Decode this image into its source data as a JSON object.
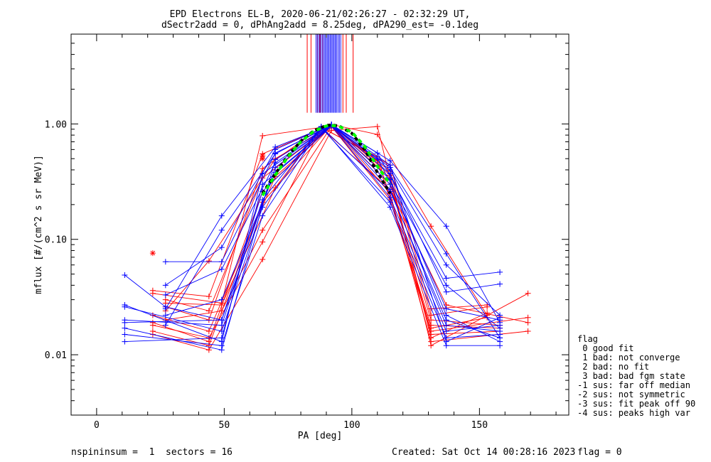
{
  "chart_data": {
    "type": "scatter",
    "title": [
      "EPD Electrons EL-B, 2020-06-21/02:26:27 - 02:32:29 UT,",
      "dSectr2add = 0, dPhAng2add = 8.25deg, dPA290_est=  -0.1deg"
    ],
    "xlabel": "PA [deg]",
    "ylabel": "mflux [#/(cm^2 s sr MeV)]",
    "xlim": [
      -10,
      185
    ],
    "ylim": [
      0.003,
      6
    ],
    "y_scale": "log",
    "x_ticks": [
      0,
      50,
      100,
      150
    ],
    "x_tick_labels": [
      "0",
      "50",
      "100",
      "150"
    ],
    "y_ticks": [
      0.01,
      0.1,
      1.0
    ],
    "y_tick_labels": [
      "0.01",
      "0.10",
      "1.00"
    ],
    "pa_bins": [
      11,
      22,
      27,
      44,
      49,
      65,
      70,
      88,
      92,
      110,
      115,
      131,
      137,
      153,
      158,
      169
    ],
    "series": [
      {
        "color": "#ff0000",
        "pa": [
          22,
          44,
          65,
          92,
          115,
          131,
          153
        ],
        "y": [
          0.019,
          0.013,
          0.26,
          0.98,
          0.36,
          0.014,
          0.023
        ]
      },
      {
        "color": "#ff0000",
        "pa": [
          22,
          44,
          65,
          92,
          115,
          131,
          169
        ],
        "y": [
          0.016,
          0.012,
          0.21,
          0.97,
          0.25,
          0.013,
          0.016
        ]
      },
      {
        "color": "#ff0000",
        "pa": [
          27,
          44,
          65,
          92,
          110,
          131,
          153
        ],
        "y": [
          0.03,
          0.024,
          0.34,
          0.96,
          0.48,
          0.017,
          0.021
        ]
      },
      {
        "color": "#ff0000",
        "pa": [
          22,
          44,
          70,
          92,
          115,
          131,
          169
        ],
        "y": [
          0.022,
          0.016,
          0.35,
          0.95,
          0.22,
          0.016,
          0.021
        ]
      },
      {
        "color": "#ff0000",
        "pa": [
          27,
          44,
          65,
          88,
          110,
          131,
          158
        ],
        "y": [
          0.026,
          0.02,
          0.41,
          0.93,
          0.52,
          0.018,
          0.017
        ]
      },
      {
        "color": "#ff0000",
        "pa": [
          22,
          49,
          65,
          92,
          115,
          131,
          153
        ],
        "y": [
          0.034,
          0.028,
          0.79,
          0.96,
          0.39,
          0.022,
          0.026
        ]
      },
      {
        "color": "#ff0000",
        "pa": [
          27,
          49,
          65,
          92,
          115,
          131,
          158
        ],
        "y": [
          0.02,
          0.024,
          0.12,
          0.95,
          0.3,
          0.02,
          0.018
        ]
      },
      {
        "color": "#ff0000",
        "pa": [
          22,
          44,
          65,
          88,
          115,
          137,
          169
        ],
        "y": [
          0.018,
          0.014,
          0.095,
          0.92,
          0.27,
          0.027,
          0.019
        ]
      },
      {
        "color": "#ff0000",
        "pa": [
          22,
          44,
          65,
          92,
          110,
          131,
          153
        ],
        "y": [
          0.036,
          0.032,
          0.55,
          0.99,
          0.81,
          0.13,
          0.022
        ]
      },
      {
        "color": "#ff0000",
        "pa": [
          27,
          44,
          70,
          92,
          115,
          131,
          158
        ],
        "y": [
          0.024,
          0.065,
          0.5,
          0.96,
          0.34,
          0.015,
          0.016
        ]
      },
      {
        "color": "#ff0000",
        "pa": [
          22,
          44,
          65,
          92,
          110,
          131,
          169
        ],
        "y": [
          0.015,
          0.011,
          0.067,
          0.88,
          0.95,
          0.012,
          0.034
        ]
      },
      {
        "color": "#ff0000",
        "pa": [
          27,
          49,
          70,
          88,
          115,
          131,
          153
        ],
        "y": [
          0.028,
          0.027,
          0.28,
          0.94,
          0.44,
          0.025,
          0.027
        ]
      },
      {
        "color": "#0000ff",
        "pa": [
          11,
          49,
          70,
          92,
          115,
          137,
          158
        ],
        "y": [
          0.017,
          0.011,
          0.49,
          0.99,
          0.44,
          0.013,
          0.021
        ]
      },
      {
        "color": "#0000ff",
        "pa": [
          11,
          49,
          65,
          92,
          115,
          137,
          158
        ],
        "y": [
          0.027,
          0.013,
          0.37,
          0.98,
          0.27,
          0.018,
          0.016
        ]
      },
      {
        "color": "#0000ff",
        "pa": [
          11,
          27,
          49,
          70,
          92,
          115,
          137,
          158
        ],
        "y": [
          0.049,
          0.026,
          0.02,
          0.42,
          0.97,
          0.33,
          0.022,
          0.013
        ]
      },
      {
        "color": "#0000ff",
        "pa": [
          27,
          49,
          70,
          92,
          115,
          137,
          158
        ],
        "y": [
          0.025,
          0.16,
          0.63,
          0.98,
          0.48,
          0.13,
          0.019
        ]
      },
      {
        "color": "#0000ff",
        "pa": [
          27,
          49,
          70,
          92,
          115,
          137,
          158
        ],
        "y": [
          0.064,
          0.064,
          0.56,
          0.97,
          0.42,
          0.075,
          0.014
        ]
      },
      {
        "color": "#0000ff",
        "pa": [
          11,
          49,
          65,
          88,
          115,
          137,
          158
        ],
        "y": [
          0.02,
          0.018,
          0.22,
          0.95,
          0.19,
          0.012,
          0.012
        ]
      },
      {
        "color": "#0000ff",
        "pa": [
          27,
          49,
          70,
          92,
          110,
          137,
          158
        ],
        "y": [
          0.04,
          0.085,
          0.6,
          0.99,
          0.56,
          0.046,
          0.052
        ]
      },
      {
        "color": "#0000ff",
        "pa": [
          11,
          49,
          65,
          92,
          115,
          137,
          158
        ],
        "y": [
          0.013,
          0.014,
          0.3,
          0.96,
          0.23,
          0.016,
          0.018
        ]
      },
      {
        "color": "#0000ff",
        "pa": [
          27,
          49,
          70,
          92,
          115,
          137,
          158
        ],
        "y": [
          0.033,
          0.055,
          0.46,
          0.98,
          0.37,
          0.035,
          0.041
        ]
      },
      {
        "color": "#0000ff",
        "pa": [
          11,
          49,
          65,
          88,
          115,
          137,
          158
        ],
        "y": [
          0.015,
          0.012,
          0.16,
          0.93,
          0.21,
          0.014,
          0.015
        ]
      },
      {
        "color": "#0000ff",
        "pa": [
          27,
          49,
          70,
          92,
          115,
          137,
          158
        ],
        "y": [
          0.022,
          0.03,
          0.38,
          0.97,
          0.3,
          0.025,
          0.02
        ]
      },
      {
        "color": "#0000ff",
        "pa": [
          11,
          49,
          65,
          92,
          110,
          137,
          158
        ],
        "y": [
          0.019,
          0.02,
          0.26,
          0.96,
          0.5,
          0.04,
          0.017
        ]
      },
      {
        "color": "#0000ff",
        "pa": [
          27,
          49,
          70,
          92,
          115,
          137,
          158
        ],
        "y": [
          0.018,
          0.12,
          0.55,
          0.99,
          0.4,
          0.06,
          0.022
        ]
      },
      {
        "color": "#0000ff",
        "pa": [
          11,
          49,
          65,
          88,
          115,
          137,
          158
        ],
        "y": [
          0.026,
          0.016,
          0.19,
          0.94,
          0.26,
          0.02,
          0.014
        ]
      }
    ],
    "red_stars": [
      {
        "pa": 22,
        "y": 0.076
      },
      {
        "pa": 65,
        "y": 0.5
      },
      {
        "pa": 65,
        "y": 0.53
      }
    ],
    "fit_curve": {
      "color": "#00ff00",
      "style": "dashed",
      "pa": [
        65,
        70,
        75,
        80,
        85,
        90,
        92,
        95,
        100,
        105,
        110,
        115
      ],
      "y": [
        0.24,
        0.36,
        0.52,
        0.7,
        0.86,
        0.96,
        0.97,
        0.95,
        0.85,
        0.64,
        0.43,
        0.3
      ]
    },
    "mean_curve": {
      "color": "#000000",
      "style": "dashed",
      "pa": [
        65,
        70,
        75,
        80,
        85,
        90,
        92,
        95,
        100,
        105,
        110,
        115
      ],
      "y": [
        0.25,
        0.37,
        0.53,
        0.71,
        0.87,
        0.97,
        0.98,
        0.96,
        0.83,
        0.6,
        0.38,
        0.25
      ]
    },
    "vertical_lines": [
      {
        "pa": 82.5,
        "color": "#ff0000"
      },
      {
        "pa": 84,
        "color": "#ff0000"
      },
      {
        "pa": 86.5,
        "color": "#ff0000"
      },
      {
        "pa": 87.5,
        "color": "#ff0000"
      },
      {
        "pa": 88.5,
        "color": "#ff0000"
      },
      {
        "pa": 100.5,
        "color": "#ff0000"
      },
      {
        "pa": 97.8,
        "color": "#ff0000"
      },
      {
        "pa": 96.5,
        "color": "#ff0000"
      },
      {
        "pa": 86.0,
        "color": "#0000ff"
      },
      {
        "pa": 86.6,
        "color": "#0000ff"
      },
      {
        "pa": 87.2,
        "color": "#0000ff"
      },
      {
        "pa": 87.8,
        "color": "#0000ff"
      },
      {
        "pa": 88.4,
        "color": "#0000ff"
      },
      {
        "pa": 89.0,
        "color": "#0000ff"
      },
      {
        "pa": 89.5,
        "color": "#0000ff"
      },
      {
        "pa": 90.0,
        "color": "#0000ff"
      },
      {
        "pa": 90.5,
        "color": "#0000ff"
      },
      {
        "pa": 91.0,
        "color": "#0000ff"
      },
      {
        "pa": 91.5,
        "color": "#0000ff"
      },
      {
        "pa": 92.0,
        "color": "#0000ff"
      },
      {
        "pa": 92.5,
        "color": "#0000ff"
      },
      {
        "pa": 93.0,
        "color": "#0000ff"
      },
      {
        "pa": 93.5,
        "color": "#0000ff"
      },
      {
        "pa": 94.0,
        "color": "#0000ff"
      },
      {
        "pa": 94.6,
        "color": "#0000ff"
      },
      {
        "pa": 95.2,
        "color": "#0000ff"
      },
      {
        "pa": 95.8,
        "color": "#0000ff"
      },
      {
        "pa": 96.0,
        "color": "#ffffff"
      }
    ],
    "vline_y_range": [
      1.25,
      6
    ]
  },
  "legend": {
    "title": "flag",
    "items": [
      " 0 good fit",
      " 1 bad: not converge",
      " 2 bad: no fit",
      " 3 bad: bad fgm state",
      "-1 sus: far off median",
      "-2 sus: not symmetric",
      "-3 sus: fit peak off 90",
      "-4 sus: peaks high var"
    ]
  },
  "footer": {
    "left": "nspininsum =  1  sectors = 16",
    "created": "Created: Sat Oct 14 00:28:16 2023",
    "flag": "flag = 0"
  }
}
